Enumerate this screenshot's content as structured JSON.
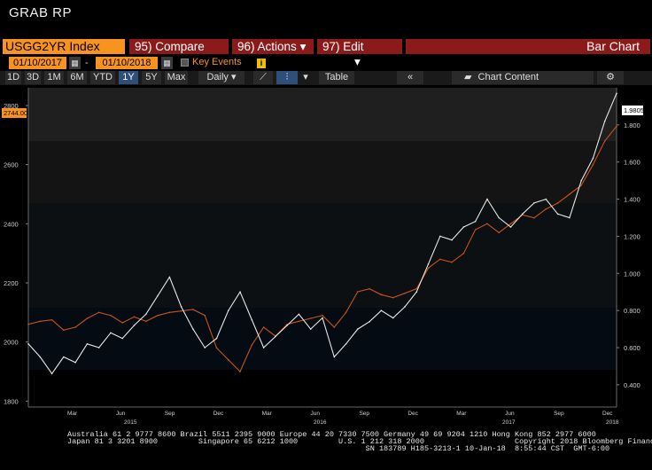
{
  "window_title": "GRAB  RP",
  "command_bar": {
    "ticker": "USGG2YR Index",
    "compare": "95) Compare",
    "actions": "96) Actions",
    "edit": "97) Edit",
    "view": "Bar Chart"
  },
  "date_range": {
    "start": "01/10/2017",
    "separator": "-",
    "end": "01/10/2018",
    "key_events": "Key Events"
  },
  "toolbar": {
    "periods": [
      "1D",
      "3D",
      "1M",
      "6M",
      "YTD",
      "1Y",
      "5Y",
      "Max"
    ],
    "active_period": "1Y",
    "frequency": "Daily",
    "table": "Table",
    "chart_content": "Chart Content"
  },
  "colors": {
    "left_series": "#c8531a",
    "right_series": "#e6e6e6",
    "menu_red": "#8b1a1a",
    "orange": "#f7931e",
    "active": "#2e4f7a"
  },
  "chart_data": {
    "type": "line",
    "xlabel_ticks": [
      "Mar",
      "Jun",
      "Sep",
      "Dec",
      "Mar",
      "Jun",
      "Sep",
      "Dec",
      "Mar",
      "Jun",
      "Sep",
      "Dec"
    ],
    "year_ticks": [
      "2015",
      "2016",
      "2017",
      "2018"
    ],
    "left_axis": {
      "ticks": [
        "1800",
        "2000",
        "2200",
        "2400",
        "2600",
        "2800"
      ],
      "ylim": [
        1780,
        2860
      ],
      "last_value_label": "2744.00"
    },
    "right_axis": {
      "ticks": [
        "0.400",
        "0.600",
        "0.800",
        "1.000",
        "1.200",
        "1.400",
        "1.600",
        "1.800"
      ],
      "ylim": [
        0.28,
        2.0
      ],
      "last_value_label": "1.9805"
    },
    "series": [
      {
        "axis": "left",
        "color": "#c8531a",
        "x": [
          0,
          0.02,
          0.04,
          0.06,
          0.08,
          0.1,
          0.12,
          0.14,
          0.16,
          0.18,
          0.2,
          0.22,
          0.24,
          0.26,
          0.28,
          0.3,
          0.32,
          0.34,
          0.36,
          0.38,
          0.4,
          0.42,
          0.44,
          0.46,
          0.48,
          0.5,
          0.52,
          0.54,
          0.56,
          0.58,
          0.6,
          0.62,
          0.64,
          0.66,
          0.68,
          0.7,
          0.72,
          0.74,
          0.76,
          0.78,
          0.8,
          0.82,
          0.84,
          0.86,
          0.88,
          0.9,
          0.92,
          0.94,
          0.96,
          0.98,
          1.0
        ],
        "values": [
          2060,
          2070,
          2075,
          2040,
          2050,
          2080,
          2100,
          2090,
          2065,
          2085,
          2070,
          2090,
          2100,
          2105,
          2110,
          2090,
          1980,
          1940,
          1900,
          1990,
          2050,
          2020,
          2060,
          2070,
          2080,
          2090,
          2050,
          2100,
          2170,
          2180,
          2160,
          2150,
          2165,
          2180,
          2250,
          2280,
          2270,
          2300,
          2380,
          2400,
          2370,
          2400,
          2430,
          2420,
          2450,
          2470,
          2500,
          2530,
          2600,
          2680,
          2730
        ]
      },
      {
        "axis": "right",
        "color": "#e6e6e6",
        "x": [
          0,
          0.02,
          0.04,
          0.06,
          0.08,
          0.1,
          0.12,
          0.14,
          0.16,
          0.18,
          0.2,
          0.22,
          0.24,
          0.26,
          0.28,
          0.3,
          0.32,
          0.34,
          0.36,
          0.38,
          0.4,
          0.42,
          0.44,
          0.46,
          0.48,
          0.5,
          0.52,
          0.54,
          0.56,
          0.58,
          0.6,
          0.62,
          0.64,
          0.66,
          0.68,
          0.7,
          0.72,
          0.74,
          0.76,
          0.78,
          0.8,
          0.82,
          0.84,
          0.86,
          0.88,
          0.9,
          0.92,
          0.94,
          0.96,
          0.98,
          1.0
        ],
        "values": [
          0.62,
          0.55,
          0.46,
          0.55,
          0.52,
          0.62,
          0.6,
          0.68,
          0.65,
          0.72,
          0.78,
          0.88,
          0.98,
          0.82,
          0.7,
          0.6,
          0.65,
          0.8,
          0.9,
          0.75,
          0.6,
          0.66,
          0.72,
          0.78,
          0.7,
          0.76,
          0.55,
          0.62,
          0.7,
          0.74,
          0.8,
          0.76,
          0.82,
          0.9,
          1.05,
          1.2,
          1.18,
          1.25,
          1.28,
          1.4,
          1.3,
          1.25,
          1.32,
          1.38,
          1.4,
          1.32,
          1.3,
          1.5,
          1.62,
          1.82,
          1.97
        ]
      }
    ]
  },
  "footer": {
    "line1": "Australia 61 2 9777 8600 Brazil 5511 2395 9000 Europe 44 20 7330 7500 Germany 49 69 9204 1210 Hong Kong 852 2977 6000",
    "line2": "Japan 81 3 3201 8900         Singapore 65 6212 1000         U.S. 1 212 318 2000                    Copyright 2018 Bloomberg Finance L.P.",
    "line3": "                                                                  SN 183789 H185-3213-1 10-Jan-18  8:55:44 CST  GMT-6:00"
  }
}
